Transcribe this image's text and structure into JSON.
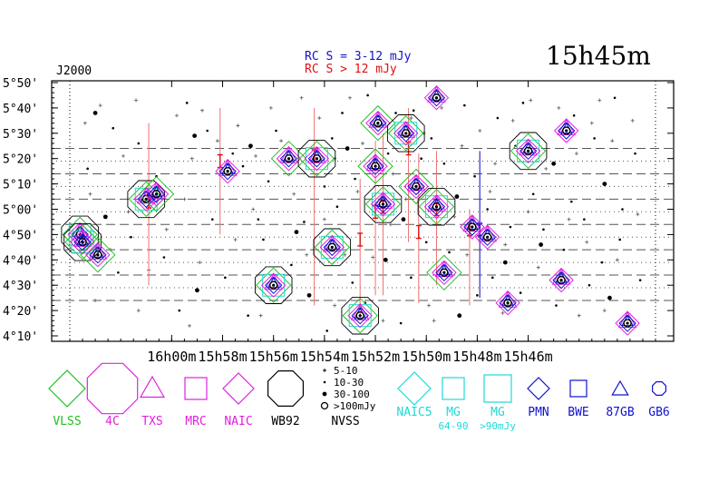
{
  "chart_data": {
    "type": "scatter",
    "title": "15h45m",
    "epoch_label": "J2000",
    "rc_legend": [
      {
        "text": "RC S = 3-12 mJy",
        "color": "#1010d0"
      },
      {
        "text": "RC S > 12 mJy",
        "color": "#e01010"
      }
    ],
    "xlim_min": [
      964,
      941
    ],
    "ylim_arcmin": [
      250,
      350
    ],
    "x_ticks": [
      {
        "min": 960,
        "label": "16h00m"
      },
      {
        "min": 958,
        "label": "15h58m"
      },
      {
        "min": 956,
        "label": "15h56m"
      },
      {
        "min": 954,
        "label": "15h54m"
      },
      {
        "min": 952,
        "label": "15h52m"
      },
      {
        "min": 950,
        "label": "15h50m"
      },
      {
        "min": 948,
        "label": "15h48m"
      },
      {
        "min": 946,
        "label": "15h46m"
      }
    ],
    "y_ticks": [
      {
        "arcmin": 250,
        "label": "4°10'"
      },
      {
        "arcmin": 260,
        "label": "4°20'"
      },
      {
        "arcmin": 270,
        "label": "4°30'"
      },
      {
        "arcmin": 280,
        "label": "4°40'"
      },
      {
        "arcmin": 290,
        "label": "4°50'"
      },
      {
        "arcmin": 300,
        "label": "5°00'"
      },
      {
        "arcmin": 310,
        "label": "5°10'"
      },
      {
        "arcmin": 320,
        "label": "5°20'"
      },
      {
        "arcmin": 330,
        "label": "5°30'"
      },
      {
        "arcmin": 340,
        "label": "5°40'"
      },
      {
        "arcmin": 350,
        "label": "5°50'"
      }
    ],
    "strip_lines_dashed": [
      324,
      314,
      304,
      294,
      284,
      274,
      264
    ],
    "strip_lines_dotted": [
      319,
      309,
      299,
      289,
      279,
      269
    ],
    "sources": [
      {
        "ra": 963.6,
        "dec": 290,
        "s": 3
      },
      {
        "ra": 963.5,
        "dec": 287,
        "s": 3
      },
      {
        "ra": 962.9,
        "dec": 282,
        "s": 2
      },
      {
        "ra": 961.0,
        "dec": 304,
        "s": 3
      },
      {
        "ra": 960.6,
        "dec": 306,
        "s": 2
      },
      {
        "ra": 957.8,
        "dec": 315,
        "s": 1
      },
      {
        "ra": 956.0,
        "dec": 270,
        "s": 3
      },
      {
        "ra": 955.4,
        "dec": 320,
        "s": 2
      },
      {
        "ra": 954.3,
        "dec": 320,
        "s": 3
      },
      {
        "ra": 953.7,
        "dec": 285,
        "s": 3
      },
      {
        "ra": 952.6,
        "dec": 258,
        "s": 3
      },
      {
        "ra": 952.0,
        "dec": 317,
        "s": 2
      },
      {
        "ra": 951.9,
        "dec": 334,
        "s": 2
      },
      {
        "ra": 951.7,
        "dec": 302,
        "s": 3
      },
      {
        "ra": 950.8,
        "dec": 330,
        "s": 3
      },
      {
        "ra": 950.4,
        "dec": 309,
        "s": 2
      },
      {
        "ra": 949.6,
        "dec": 301,
        "s": 3
      },
      {
        "ra": 949.6,
        "dec": 344,
        "s": 1
      },
      {
        "ra": 949.3,
        "dec": 275,
        "s": 2
      },
      {
        "ra": 948.2,
        "dec": 293,
        "s": 1
      },
      {
        "ra": 947.6,
        "dec": 289,
        "s": 1
      },
      {
        "ra": 946.8,
        "dec": 263,
        "s": 1
      },
      {
        "ra": 946.0,
        "dec": 323,
        "s": 3
      },
      {
        "ra": 944.7,
        "dec": 272,
        "s": 1
      },
      {
        "ra": 944.5,
        "dec": 331,
        "s": 1
      },
      {
        "ra": 942.1,
        "dec": 255,
        "s": 1
      }
    ],
    "red_bars": [
      {
        "ra": 960.9,
        "dec": 303,
        "lo": 270,
        "hi": 334
      },
      {
        "ra": 958.1,
        "dec": 319,
        "lo": 290,
        "hi": 340
      },
      {
        "ra": 954.4,
        "dec": 321,
        "lo": 262,
        "hi": 340
      },
      {
        "ra": 952.6,
        "dec": 288,
        "lo": 257,
        "hi": 312
      },
      {
        "ra": 952.0,
        "dec": 299,
        "lo": 266,
        "hi": 327
      },
      {
        "ra": 951.7,
        "dec": 301,
        "lo": 266,
        "hi": 330
      },
      {
        "ra": 950.7,
        "dec": 324,
        "lo": 287,
        "hi": 340
      },
      {
        "ra": 950.3,
        "dec": 291,
        "lo": 263,
        "hi": 322
      },
      {
        "ra": 949.6,
        "dec": 300,
        "lo": 270,
        "hi": 323
      },
      {
        "ra": 948.3,
        "dec": 292,
        "lo": 262,
        "hi": 300
      }
    ],
    "blue_bars": [
      {
        "ra": 947.9,
        "dec": 292,
        "lo": 265,
        "hi": 323
      }
    ],
    "scatter_dots": [
      [
        963.0,
        338
      ],
      [
        962.3,
        332
      ],
      [
        961.3,
        326
      ],
      [
        960.6,
        313
      ],
      [
        959.4,
        342
      ],
      [
        959.1,
        329
      ],
      [
        958.6,
        331
      ],
      [
        958.4,
        296
      ],
      [
        957.6,
        322
      ],
      [
        957.2,
        317
      ],
      [
        956.9,
        325
      ],
      [
        956.6,
        296
      ],
      [
        956.4,
        288
      ],
      [
        955.9,
        331
      ],
      [
        955.6,
        319
      ],
      [
        955.1,
        291
      ],
      [
        954.8,
        295
      ],
      [
        954.0,
        309
      ],
      [
        953.7,
        328
      ],
      [
        953.3,
        338
      ],
      [
        953.1,
        324
      ],
      [
        952.8,
        312
      ],
      [
        952.3,
        345
      ],
      [
        951.5,
        322
      ],
      [
        951.2,
        338
      ],
      [
        950.9,
        296
      ],
      [
        950.5,
        339
      ],
      [
        950.2,
        320
      ],
      [
        949.8,
        328
      ],
      [
        949.3,
        318
      ],
      [
        948.8,
        305
      ],
      [
        948.5,
        341
      ],
      [
        948.1,
        313
      ],
      [
        947.6,
        300
      ],
      [
        947.2,
        336
      ],
      [
        946.9,
        279
      ],
      [
        946.5,
        325
      ],
      [
        946.2,
        342
      ],
      [
        945.8,
        306
      ],
      [
        945.4,
        292
      ],
      [
        945.0,
        318
      ],
      [
        944.6,
        284
      ],
      [
        944.2,
        337
      ],
      [
        943.8,
        296
      ],
      [
        943.4,
        328
      ],
      [
        943.0,
        310
      ],
      [
        942.6,
        344
      ],
      [
        942.3,
        300
      ],
      [
        941.8,
        322
      ],
      [
        963.3,
        316
      ],
      [
        962.6,
        297
      ],
      [
        962.1,
        275
      ],
      [
        961.6,
        289
      ],
      [
        960.3,
        281
      ],
      [
        959.7,
        260
      ],
      [
        959.0,
        268
      ],
      [
        957.9,
        273
      ],
      [
        957.0,
        258
      ],
      [
        956.2,
        311
      ],
      [
        955.3,
        278
      ],
      [
        954.6,
        266
      ],
      [
        953.9,
        252
      ],
      [
        953.5,
        301
      ],
      [
        952.9,
        271
      ],
      [
        952.4,
        263
      ],
      [
        951.6,
        280
      ],
      [
        951.0,
        255
      ],
      [
        950.6,
        273
      ],
      [
        950.0,
        287
      ],
      [
        949.1,
        283
      ],
      [
        948.7,
        258
      ],
      [
        948.0,
        266
      ],
      [
        947.4,
        273
      ],
      [
        946.7,
        293
      ],
      [
        946.3,
        267
      ],
      [
        945.5,
        286
      ],
      [
        944.9,
        262
      ],
      [
        944.3,
        303
      ],
      [
        943.6,
        270
      ],
      [
        943.1,
        279
      ],
      [
        942.8,
        265
      ],
      [
        942.4,
        288
      ],
      [
        941.6,
        272
      ]
    ],
    "plus_marks": [
      [
        963.4,
        334
      ],
      [
        962.8,
        341
      ],
      [
        961.9,
        321
      ],
      [
        961.4,
        343
      ],
      [
        959.8,
        337
      ],
      [
        959.2,
        320
      ],
      [
        958.8,
        339
      ],
      [
        958.2,
        327
      ],
      [
        957.4,
        333
      ],
      [
        956.7,
        321
      ],
      [
        956.1,
        340
      ],
      [
        955.7,
        327
      ],
      [
        954.9,
        344
      ],
      [
        954.2,
        336
      ],
      [
        953.6,
        320
      ],
      [
        953.0,
        344
      ],
      [
        952.5,
        326
      ],
      [
        951.3,
        314
      ],
      [
        950.6,
        336
      ],
      [
        950.1,
        330
      ],
      [
        949.4,
        340
      ],
      [
        948.6,
        325
      ],
      [
        947.9,
        331
      ],
      [
        947.3,
        318
      ],
      [
        946.6,
        335
      ],
      [
        945.9,
        343
      ],
      [
        945.3,
        316
      ],
      [
        944.8,
        340
      ],
      [
        944.1,
        322
      ],
      [
        943.5,
        334
      ],
      [
        943.2,
        343
      ],
      [
        942.7,
        327
      ],
      [
        941.9,
        335
      ],
      [
        963.2,
        306
      ],
      [
        962.4,
        284
      ],
      [
        961.7,
        299
      ],
      [
        960.9,
        276
      ],
      [
        960.2,
        292
      ],
      [
        959.5,
        304
      ],
      [
        958.9,
        279
      ],
      [
        957.5,
        288
      ],
      [
        956.8,
        300
      ],
      [
        955.2,
        306
      ],
      [
        954.7,
        282
      ],
      [
        954.0,
        296
      ],
      [
        953.2,
        282
      ],
      [
        952.7,
        307
      ],
      [
        952.1,
        281
      ],
      [
        951.4,
        294
      ],
      [
        950.8,
        304
      ],
      [
        949.9,
        262
      ],
      [
        949.2,
        274
      ],
      [
        948.9,
        297
      ],
      [
        948.4,
        282
      ],
      [
        947.5,
        307
      ],
      [
        946.9,
        286
      ],
      [
        946.0,
        299
      ],
      [
        945.6,
        277
      ],
      [
        944.4,
        296
      ],
      [
        943.7,
        287
      ],
      [
        943.0,
        260
      ],
      [
        942.5,
        280
      ],
      [
        941.7,
        298
      ],
      [
        963.0,
        264
      ],
      [
        961.3,
        260
      ],
      [
        959.3,
        254
      ],
      [
        956.5,
        258
      ],
      [
        953.6,
        262
      ],
      [
        951.7,
        256
      ],
      [
        949.7,
        256
      ],
      [
        947.0,
        259
      ],
      [
        944.0,
        258
      ]
    ],
    "legend": {
      "items": [
        {
          "key": "vlss",
          "label": "VLSS",
          "color": "#20c020"
        },
        {
          "key": "4c",
          "label": "4C",
          "color": "#e020e0"
        },
        {
          "key": "txs",
          "label": "TXS",
          "color": "#e020e0"
        },
        {
          "key": "mrc",
          "label": "MRC",
          "color": "#e020e0"
        },
        {
          "key": "naic",
          "label": "NAIC",
          "color": "#e020e0"
        },
        {
          "key": "wb92",
          "label": "WB92",
          "color": "#000000"
        },
        {
          "key": "nvss",
          "label": "NVSS",
          "color": "#000000"
        },
        {
          "key": "naic5",
          "label": "NAIC5",
          "color": "#20d8d8"
        },
        {
          "key": "mg1",
          "label": "MG",
          "color": "#20d8d8"
        },
        {
          "key": "mg2",
          "label": "MG",
          "color": "#20d8d8"
        },
        {
          "key": "pmn",
          "label": "PMN",
          "color": "#1010d0"
        },
        {
          "key": "bwe",
          "label": "BWE",
          "color": "#1010d0"
        },
        {
          "key": "87gb",
          "label": "87GB",
          "color": "#1010d0"
        },
        {
          "key": "gb6",
          "label": "GB6",
          "color": "#1010d0"
        }
      ],
      "nvss_scale": [
        "5-10",
        "10-30",
        "30-100",
        ">100mJy"
      ],
      "mg_sub": [
        "64-90",
        ">90mJy"
      ]
    },
    "grid": "dashed strips"
  }
}
